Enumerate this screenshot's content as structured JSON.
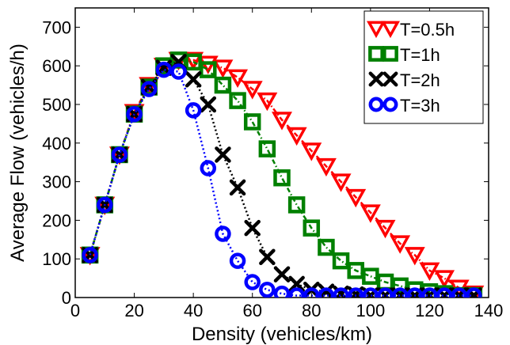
{
  "chart_data": {
    "type": "line",
    "xlabel": "Density (vehicles/km)",
    "ylabel": "Average Flow (vehicles/h)",
    "xlim": [
      0,
      140
    ],
    "ylim": [
      0,
      750
    ],
    "xticks": [
      "0",
      "20",
      "40",
      "60",
      "80",
      "100",
      "120",
      "140"
    ],
    "yticks": [
      "0",
      "100",
      "200",
      "300",
      "400",
      "500",
      "600",
      "700"
    ],
    "grid": false,
    "legend_position": "top-right",
    "series": [
      {
        "name": "T=0.5h",
        "color": "#ff0000",
        "marker": "triangle-down",
        "line_style": "dash-dot",
        "x": [
          5,
          10,
          15,
          20,
          25,
          30,
          35,
          40,
          45,
          50,
          55,
          60,
          65,
          70,
          75,
          80,
          85,
          90,
          95,
          100,
          105,
          110,
          115,
          120,
          125,
          130,
          135
        ],
        "y": [
          110,
          240,
          370,
          480,
          550,
          600,
          615,
          615,
          605,
          595,
          570,
          540,
          510,
          460,
          420,
          380,
          340,
          300,
          260,
          220,
          180,
          140,
          110,
          70,
          50,
          25,
          10
        ]
      },
      {
        "name": "T=1h",
        "color": "#008000",
        "marker": "square",
        "line_style": "dash-dot",
        "x": [
          5,
          10,
          15,
          20,
          25,
          30,
          35,
          40,
          45,
          50,
          55,
          60,
          65,
          70,
          75,
          80,
          85,
          90,
          95,
          100,
          105,
          110,
          115,
          120,
          125,
          130,
          135
        ],
        "y": [
          110,
          240,
          370,
          475,
          545,
          600,
          615,
          610,
          590,
          550,
          510,
          455,
          385,
          310,
          240,
          180,
          130,
          95,
          70,
          55,
          40,
          30,
          20,
          15,
          10,
          5,
          5
        ]
      },
      {
        "name": "T=2h",
        "color": "#000000",
        "marker": "x",
        "line_style": "dotted",
        "x": [
          5,
          10,
          15,
          20,
          25,
          30,
          35,
          40,
          45,
          50,
          55,
          60,
          65,
          70,
          75,
          80,
          85,
          90,
          95,
          100,
          105,
          110,
          115,
          120,
          125,
          130,
          135
        ],
        "y": [
          110,
          240,
          370,
          475,
          545,
          595,
          610,
          565,
          500,
          370,
          285,
          180,
          105,
          60,
          35,
          20,
          15,
          10,
          8,
          5,
          5,
          5,
          5,
          5,
          5,
          5,
          5
        ]
      },
      {
        "name": "T=3h",
        "color": "#0000ff",
        "marker": "circle",
        "line_style": "dotted",
        "x": [
          5,
          10,
          15,
          20,
          25,
          30,
          35,
          40,
          45,
          50,
          55,
          60,
          65,
          70,
          75,
          80,
          85,
          90,
          95,
          100,
          105,
          110,
          115,
          120,
          125,
          130,
          135
        ],
        "y": [
          110,
          240,
          370,
          475,
          540,
          590,
          585,
          485,
          335,
          165,
          95,
          40,
          20,
          10,
          5,
          5,
          5,
          5,
          5,
          5,
          5,
          5,
          5,
          5,
          5,
          5,
          5
        ]
      }
    ]
  }
}
